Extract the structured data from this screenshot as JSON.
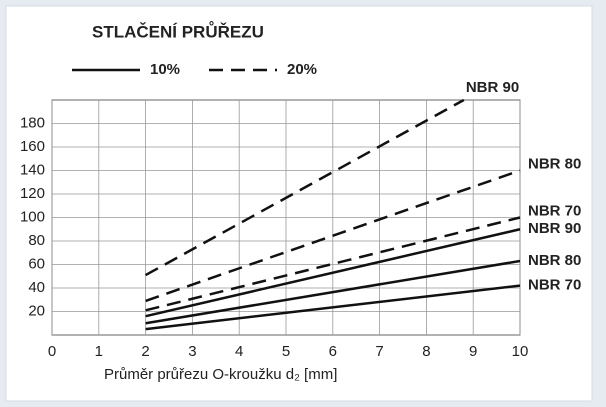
{
  "chart_data": {
    "type": "line",
    "title": "STLAČENÍ PRŮŘEZU",
    "xlabel": "Průměr průřezu O-kroužku d₂ [mm]",
    "legend": [
      {
        "label": "10%",
        "dash": "solid"
      },
      {
        "label": "20%",
        "dash": "dashed"
      }
    ],
    "xlim": [
      0,
      10
    ],
    "xticks": [
      0,
      1,
      2,
      3,
      4,
      5,
      6,
      7,
      8,
      9,
      10
    ],
    "ylim": [
      0,
      200
    ],
    "yticks": [
      20,
      40,
      60,
      80,
      100,
      120,
      140,
      160,
      180
    ],
    "grid": true,
    "color": "#111111",
    "series": [
      {
        "name": "NBR 90",
        "dash": "dashed",
        "x": [
          2,
          8.8
        ],
        "values": [
          51,
          200
        ]
      },
      {
        "name": "NBR 80",
        "dash": "dashed",
        "x": [
          2,
          10
        ],
        "values": [
          29,
          140
        ]
      },
      {
        "name": "NBR 70",
        "dash": "dashed",
        "x": [
          2,
          10
        ],
        "values": [
          21,
          100
        ]
      },
      {
        "name": "NBR 90",
        "dash": "solid",
        "x": [
          2,
          10
        ],
        "values": [
          16,
          90
        ]
      },
      {
        "name": "NBR 80",
        "dash": "solid",
        "x": [
          2,
          10
        ],
        "values": [
          10,
          63
        ]
      },
      {
        "name": "NBR 70",
        "dash": "solid",
        "x": [
          2,
          10
        ],
        "values": [
          5,
          42
        ]
      }
    ]
  }
}
